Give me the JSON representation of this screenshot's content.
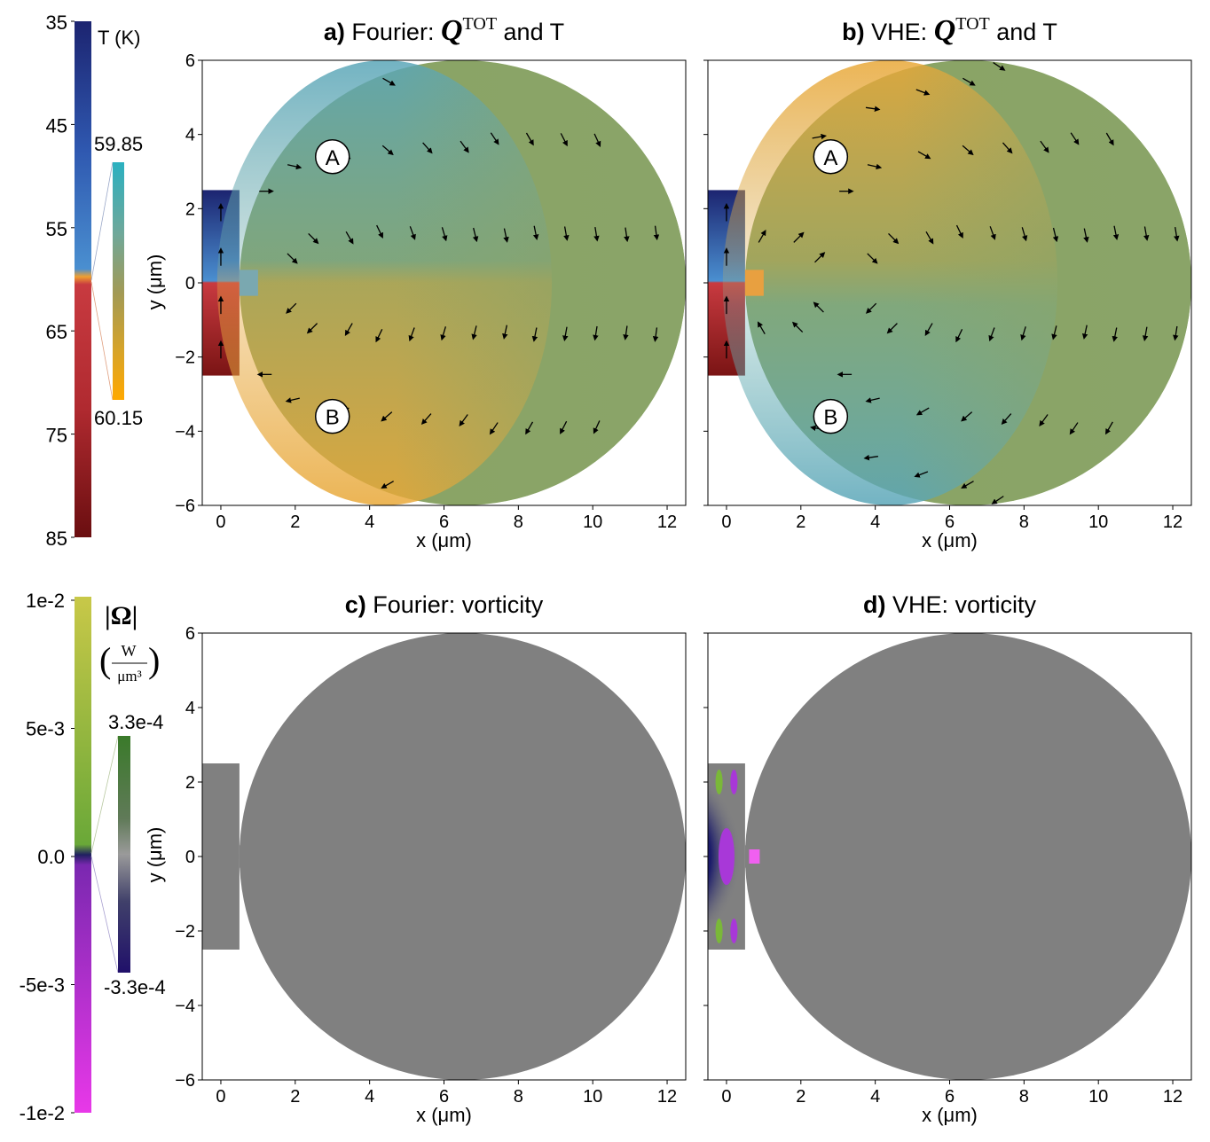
{
  "figure": {
    "panels": [
      {
        "id": "a",
        "title_label": "a)",
        "title_pre": "Fourier: ",
        "title_math": "Q",
        "title_sup": "TOT",
        "title_post": " and T",
        "xlabel": "x (μm)",
        "ylabel": "y (μm)",
        "markers": [
          "A",
          "B"
        ]
      },
      {
        "id": "b",
        "title_label": "b)",
        "title_pre": "VHE: ",
        "title_math": "Q",
        "title_sup": "TOT",
        "title_post": " and T",
        "xlabel": "x (μm)",
        "ylabel": "",
        "markers": [
          "A",
          "B"
        ]
      },
      {
        "id": "c",
        "title_label": "c)",
        "title_pre": "Fourier: vorticity",
        "xlabel": "x (μm)",
        "ylabel": "",
        "markers": []
      },
      {
        "id": "d",
        "title_label": "d)",
        "title_pre": "VHE: vorticity",
        "xlabel": "x (μm)",
        "ylabel": "",
        "markers": []
      }
    ],
    "x_ticks": [
      "0",
      "2",
      "4",
      "6",
      "8",
      "10",
      "12"
    ],
    "y_ticks": [
      "6",
      "4",
      "2",
      "0",
      "−2",
      "−4",
      "−6"
    ],
    "temperature_colorbar": {
      "label": "T (K)",
      "ticks": [
        "35",
        "45",
        "55",
        "65",
        "75",
        "85"
      ],
      "inset_top": "59.85",
      "inset_bottom": "60.15",
      "inset_ylabel": "y (μm)",
      "inset_top_color": "#4a9fb5",
      "inset_bottom_color": "#f0a030"
    },
    "vorticity_colorbar": {
      "label": "|Ω|",
      "unit_num": "W",
      "unit_den": "μm³",
      "ticks": [
        "1e-2",
        "5e-3",
        "0.0",
        "-5e-3",
        "-1e-2"
      ],
      "inset_top": "3.3e-4",
      "inset_bottom": "-3.3e-4",
      "inset_ylabel": "y (μm)",
      "inset_top_color": "#3a7a2a",
      "inset_bottom_color": "#3a1a8a"
    },
    "colors": {
      "hot": "#8b1a1a",
      "cold": "#1c2470",
      "neutral_gray": "#808080",
      "mid_olive": "#8aa466",
      "warm_orange": "#eaa83a",
      "cool_teal": "#5aa6b0",
      "purple": "#a838d8",
      "magenta": "#e040e0",
      "green": "#7ab838"
    }
  },
  "chart_data": [
    {
      "type": "heatmap",
      "title": "a) Fourier: Q^TOT and T",
      "xlabel": "x (μm)",
      "ylabel": "y (μm)",
      "xlim": [
        -0.5,
        12.5
      ],
      "ylim": [
        -6,
        6
      ],
      "colorbar": "T (K)",
      "colorbar_range": [
        59.85,
        60.15
      ],
      "markers": [
        {
          "label": "A",
          "x": 3.0,
          "y": 3.4
        },
        {
          "label": "B",
          "x": 3.0,
          "y": -3.6
        }
      ]
    },
    {
      "type": "heatmap",
      "title": "b) VHE: Q^TOT and T",
      "xlabel": "x (μm)",
      "xlim": [
        -0.5,
        12.5
      ],
      "ylim": [
        -6,
        6
      ],
      "colorbar": "T (K)",
      "colorbar_range": [
        59.85,
        60.15
      ],
      "markers": [
        {
          "label": "A",
          "x": 2.8,
          "y": 3.4
        },
        {
          "label": "B",
          "x": 2.8,
          "y": -3.6
        }
      ]
    },
    {
      "type": "heatmap",
      "title": "c) Fourier: vorticity",
      "xlabel": "x (μm)",
      "xlim": [
        -0.5,
        12.5
      ],
      "ylim": [
        -6,
        6
      ],
      "colorbar": "|Ω| (W/μm³)",
      "colorbar_range": [
        -0.00033,
        0.00033
      ]
    },
    {
      "type": "heatmap",
      "title": "d) VHE: vorticity",
      "xlabel": "x (μm)",
      "xlim": [
        -0.5,
        12.5
      ],
      "ylim": [
        -6,
        6
      ],
      "colorbar": "|Ω| (W/μm³)",
      "colorbar_range": [
        -0.00033,
        0.00033
      ]
    }
  ]
}
